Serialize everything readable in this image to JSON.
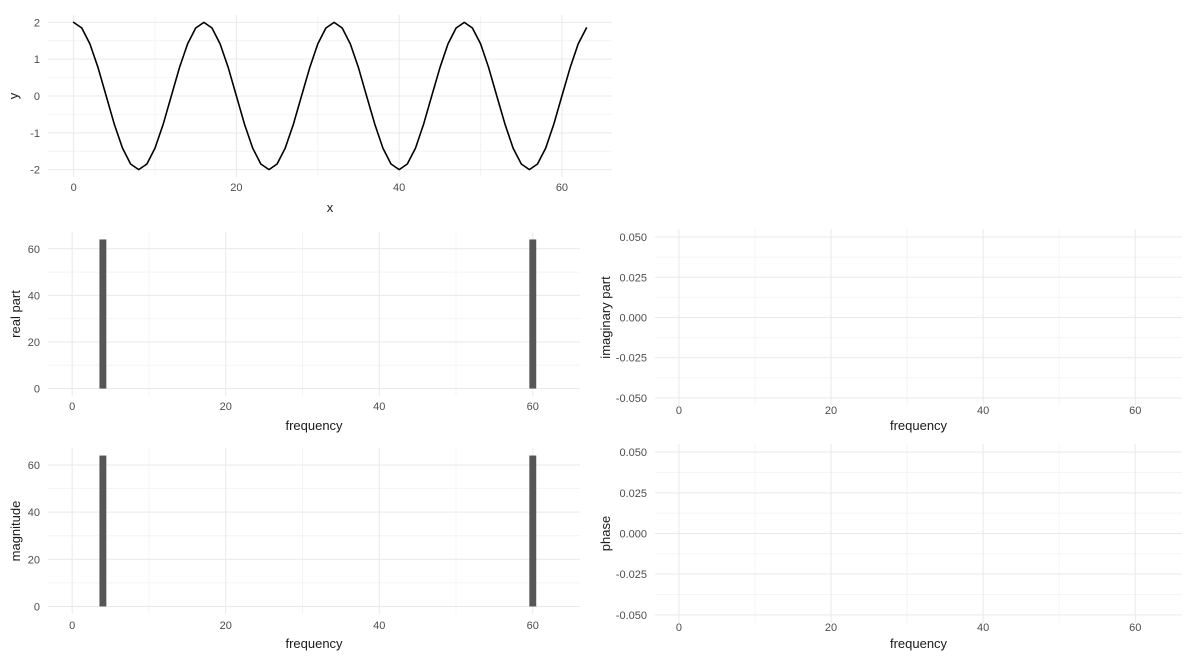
{
  "colors": {
    "background": "#ffffff",
    "line": "#000000",
    "bar": "#565656",
    "grid_major": "#e9e9e9",
    "grid_minor": "#f4f4f4",
    "tick_label": "#4d4d4d",
    "axis_title": "#1a1a1a"
  },
  "chart_data": [
    {
      "id": "signal",
      "type": "line",
      "title": "",
      "xlabel": "x",
      "ylabel": "y",
      "xlim": [
        -3.15,
        66.15
      ],
      "ylim": [
        -2.2,
        2.2
      ],
      "grid": true,
      "legend": "none",
      "x_ticks": {
        "values": [
          0,
          20,
          40,
          60
        ],
        "labels": [
          "0",
          "20",
          "40",
          "60"
        ],
        "minor": [
          10,
          30,
          50
        ]
      },
      "y_ticks": {
        "values": [
          -2,
          -1,
          0,
          1,
          2
        ],
        "labels": [
          "-2",
          "-1",
          "0",
          "1",
          "2"
        ],
        "minor": [
          -1.5,
          -0.5,
          0.5,
          1.5
        ]
      },
      "series": [
        {
          "x": [
            0,
            1,
            2,
            3,
            4,
            5,
            6,
            7,
            8,
            9,
            10,
            11,
            12,
            13,
            14,
            15,
            16,
            17,
            18,
            19,
            20,
            21,
            22,
            23,
            24,
            25,
            26,
            27,
            28,
            29,
            30,
            31,
            32,
            33,
            34,
            35,
            36,
            37,
            38,
            39,
            40,
            41,
            42,
            43,
            44,
            45,
            46,
            47,
            48,
            49,
            50,
            51,
            52,
            53,
            54,
            55,
            56,
            57,
            58,
            59,
            60,
            61,
            62,
            63
          ],
          "y": [
            2,
            1.848,
            1.414,
            0.765,
            0,
            -0.765,
            -1.414,
            -1.848,
            -2,
            -1.848,
            -1.414,
            -0.765,
            0,
            0.765,
            1.414,
            1.848,
            2,
            1.848,
            1.414,
            0.765,
            0,
            -0.765,
            -1.414,
            -1.848,
            -2,
            -1.848,
            -1.414,
            -0.765,
            0,
            0.765,
            1.414,
            1.848,
            2,
            1.848,
            1.414,
            0.765,
            0,
            -0.765,
            -1.414,
            -1.848,
            -2,
            -1.848,
            -1.414,
            -0.765,
            0,
            0.765,
            1.414,
            1.848,
            2,
            1.848,
            1.414,
            0.765,
            0,
            -0.765,
            -1.414,
            -1.848,
            -2,
            -1.848,
            -1.414,
            -0.765,
            0,
            0.765,
            1.414,
            1.848
          ]
        }
      ]
    },
    {
      "id": "real",
      "type": "bar",
      "title": "",
      "xlabel": "frequency",
      "ylabel": "real part",
      "xlim": [
        -3.15,
        66.15
      ],
      "ylim": [
        -3.2,
        67.2
      ],
      "grid": true,
      "legend": "none",
      "x_ticks": {
        "values": [
          0,
          20,
          40,
          60
        ],
        "labels": [
          "0",
          "20",
          "40",
          "60"
        ],
        "minor": [
          10,
          30,
          50
        ]
      },
      "y_ticks": {
        "values": [
          0,
          20,
          40,
          60
        ],
        "labels": [
          "0",
          "20",
          "40",
          "60"
        ],
        "minor": [
          10,
          30,
          50
        ]
      },
      "bars": {
        "n_frequencies": 64,
        "width": 0.9,
        "other_value": 0,
        "nonzero": [
          {
            "x": 4,
            "y": 64
          },
          {
            "x": 60,
            "y": 64
          }
        ]
      }
    },
    {
      "id": "imaginary",
      "type": "bar",
      "title": "",
      "xlabel": "frequency",
      "ylabel": "imaginary part",
      "xlim": [
        -3.15,
        66.15
      ],
      "ylim": [
        -0.055,
        0.055
      ],
      "grid": true,
      "legend": "none",
      "x_ticks": {
        "values": [
          0,
          20,
          40,
          60
        ],
        "labels": [
          "0",
          "20",
          "40",
          "60"
        ],
        "minor": [
          10,
          30,
          50
        ]
      },
      "y_ticks": {
        "values": [
          0.05,
          0.025,
          0,
          -0.025,
          -0.05
        ],
        "labels": [
          "0.050",
          "0.025",
          "0.000",
          "-0.025",
          "-0.050"
        ],
        "minor": [
          0.0375,
          0.0125,
          -0.0125,
          -0.0375
        ]
      },
      "bars": {
        "n_frequencies": 64,
        "width": 0.9,
        "other_value": 0,
        "nonzero": []
      }
    },
    {
      "id": "magnitude",
      "type": "bar",
      "title": "",
      "xlabel": "frequency",
      "ylabel": "magnitude",
      "xlim": [
        -3.15,
        66.15
      ],
      "ylim": [
        -3.2,
        67.2
      ],
      "grid": true,
      "legend": "none",
      "x_ticks": {
        "values": [
          0,
          20,
          40,
          60
        ],
        "labels": [
          "0",
          "20",
          "40",
          "60"
        ],
        "minor": [
          10,
          30,
          50
        ]
      },
      "y_ticks": {
        "values": [
          0,
          20,
          40,
          60
        ],
        "labels": [
          "0",
          "20",
          "40",
          "60"
        ],
        "minor": [
          10,
          30,
          50
        ]
      },
      "bars": {
        "n_frequencies": 64,
        "width": 0.9,
        "other_value": 0,
        "nonzero": [
          {
            "x": 4,
            "y": 64
          },
          {
            "x": 60,
            "y": 64
          }
        ]
      }
    },
    {
      "id": "phase",
      "type": "bar",
      "title": "",
      "xlabel": "frequency",
      "ylabel": "phase",
      "xlim": [
        -3.15,
        66.15
      ],
      "ylim": [
        -0.055,
        0.055
      ],
      "grid": true,
      "legend": "none",
      "x_ticks": {
        "values": [
          0,
          20,
          40,
          60
        ],
        "labels": [
          "0",
          "20",
          "40",
          "60"
        ],
        "minor": [
          10,
          30,
          50
        ]
      },
      "y_ticks": {
        "values": [
          0.05,
          0.025,
          0,
          -0.025,
          -0.05
        ],
        "labels": [
          "0.050",
          "0.025",
          "0.000",
          "-0.025",
          "-0.050"
        ],
        "minor": [
          0.0375,
          0.0125,
          -0.0125,
          -0.0375
        ]
      },
      "bars": {
        "n_frequencies": 64,
        "width": 0.9,
        "other_value": 0,
        "nonzero": []
      }
    }
  ]
}
